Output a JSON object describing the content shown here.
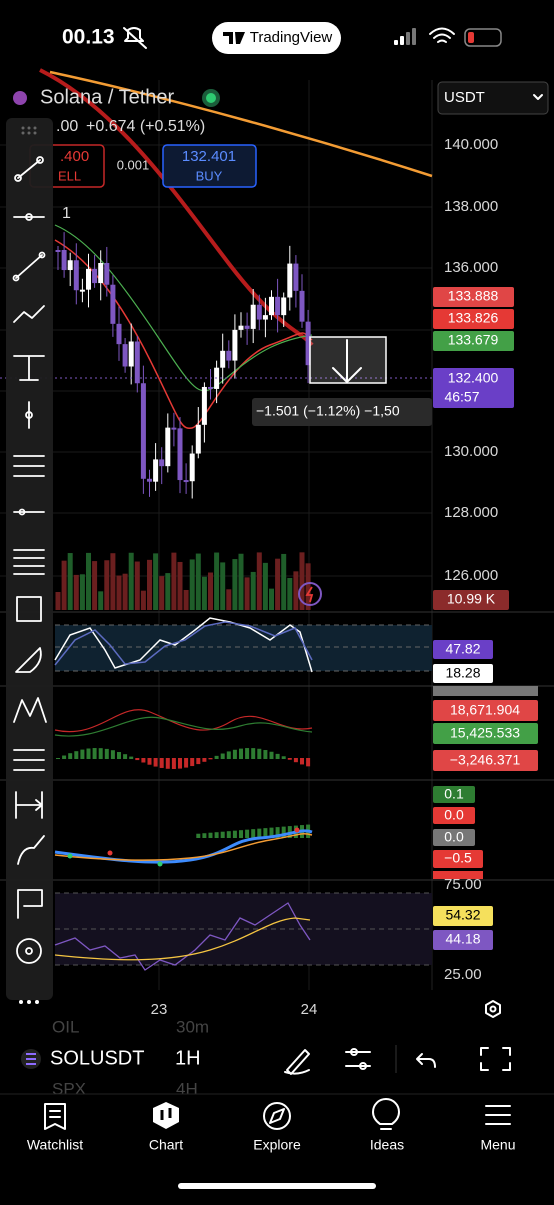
{
  "status_bar": {
    "time": "00.13",
    "app": "TradingView"
  },
  "symbol": {
    "name": "Solana / Tether",
    "last_fragment": ".00",
    "change": "+0.674 (+0.51%)",
    "currency": "USDT"
  },
  "order": {
    "sell_price": ".400",
    "sell_label": "ELL",
    "spread": "0.001",
    "buy_price": "132.401",
    "buy_label": "BUY"
  },
  "interval_marker": "1",
  "price_axis": [
    "140.000",
    "138.000",
    "136.000",
    "130.000",
    "128.000",
    "126.000"
  ],
  "price_badges": [
    "133.888",
    "133.826",
    "133.679"
  ],
  "last_price": {
    "price": "132.400",
    "countdown": "46:57"
  },
  "volume_badge": "10.99 K",
  "measure_label": "−1.501 (−1.12%) −1,50",
  "stoch": [
    "47.82",
    "18.28"
  ],
  "macd": [
    "18,671.904",
    "15,425.533",
    "−3,246.371"
  ],
  "oscillator": [
    "0.1",
    "0.0",
    "0.0",
    "−0.5",
    "75.00"
  ],
  "rsi": [
    "54.32",
    "44.18",
    "25.00"
  ],
  "time_axis": [
    "23",
    "24"
  ],
  "bottom_toolbar": {
    "symbol": "SOLUSDT",
    "interval": "1H",
    "behind": [
      "OIL",
      "30m",
      "SPX",
      "4H"
    ]
  },
  "tabs": [
    "Watchlist",
    "Chart",
    "Explore",
    "Ideas",
    "Menu"
  ]
}
